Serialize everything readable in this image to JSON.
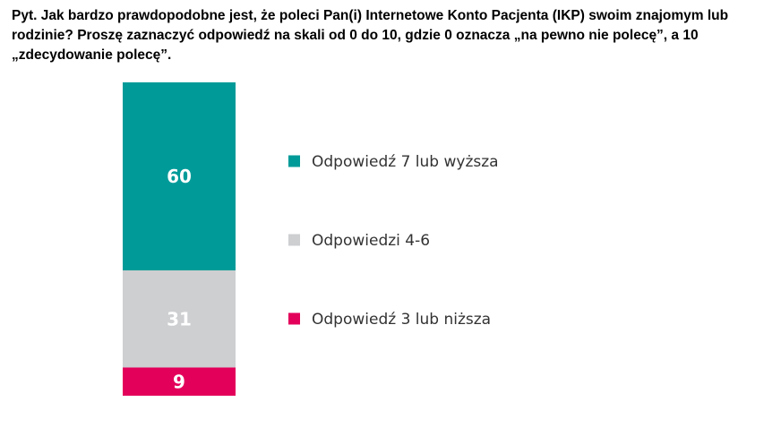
{
  "question": "Pyt. Jak bardzo prawdopodobne jest, że poleci Pan(i) Internetowe Konto Pacjenta (IKP) swoim znajomym lub rodzinie? Proszę zaznaczyć odpowiedź na skali od 0 do 10, gdzie 0 oznacza „na pewno nie polecę”, a 10 „zdecydowanie polecę”.",
  "chart_data": {
    "type": "bar",
    "subtype": "stacked-100",
    "title": "",
    "categories": [
      ""
    ],
    "series": [
      {
        "name": "Odpowiedź 7 lub wyższa",
        "values": [
          60
        ],
        "color": "#009b99"
      },
      {
        "name": "Odpowiedzi 4-6",
        "values": [
          31
        ],
        "color": "#cdcfd1"
      },
      {
        "name": "Odpowiedź 3 lub niższa",
        "values": [
          9
        ],
        "color": "#e3005b"
      }
    ],
    "data_labels": [
      "60",
      "31",
      "9"
    ],
    "ylim": [
      0,
      100
    ],
    "legend_position": "right",
    "grid": false
  }
}
